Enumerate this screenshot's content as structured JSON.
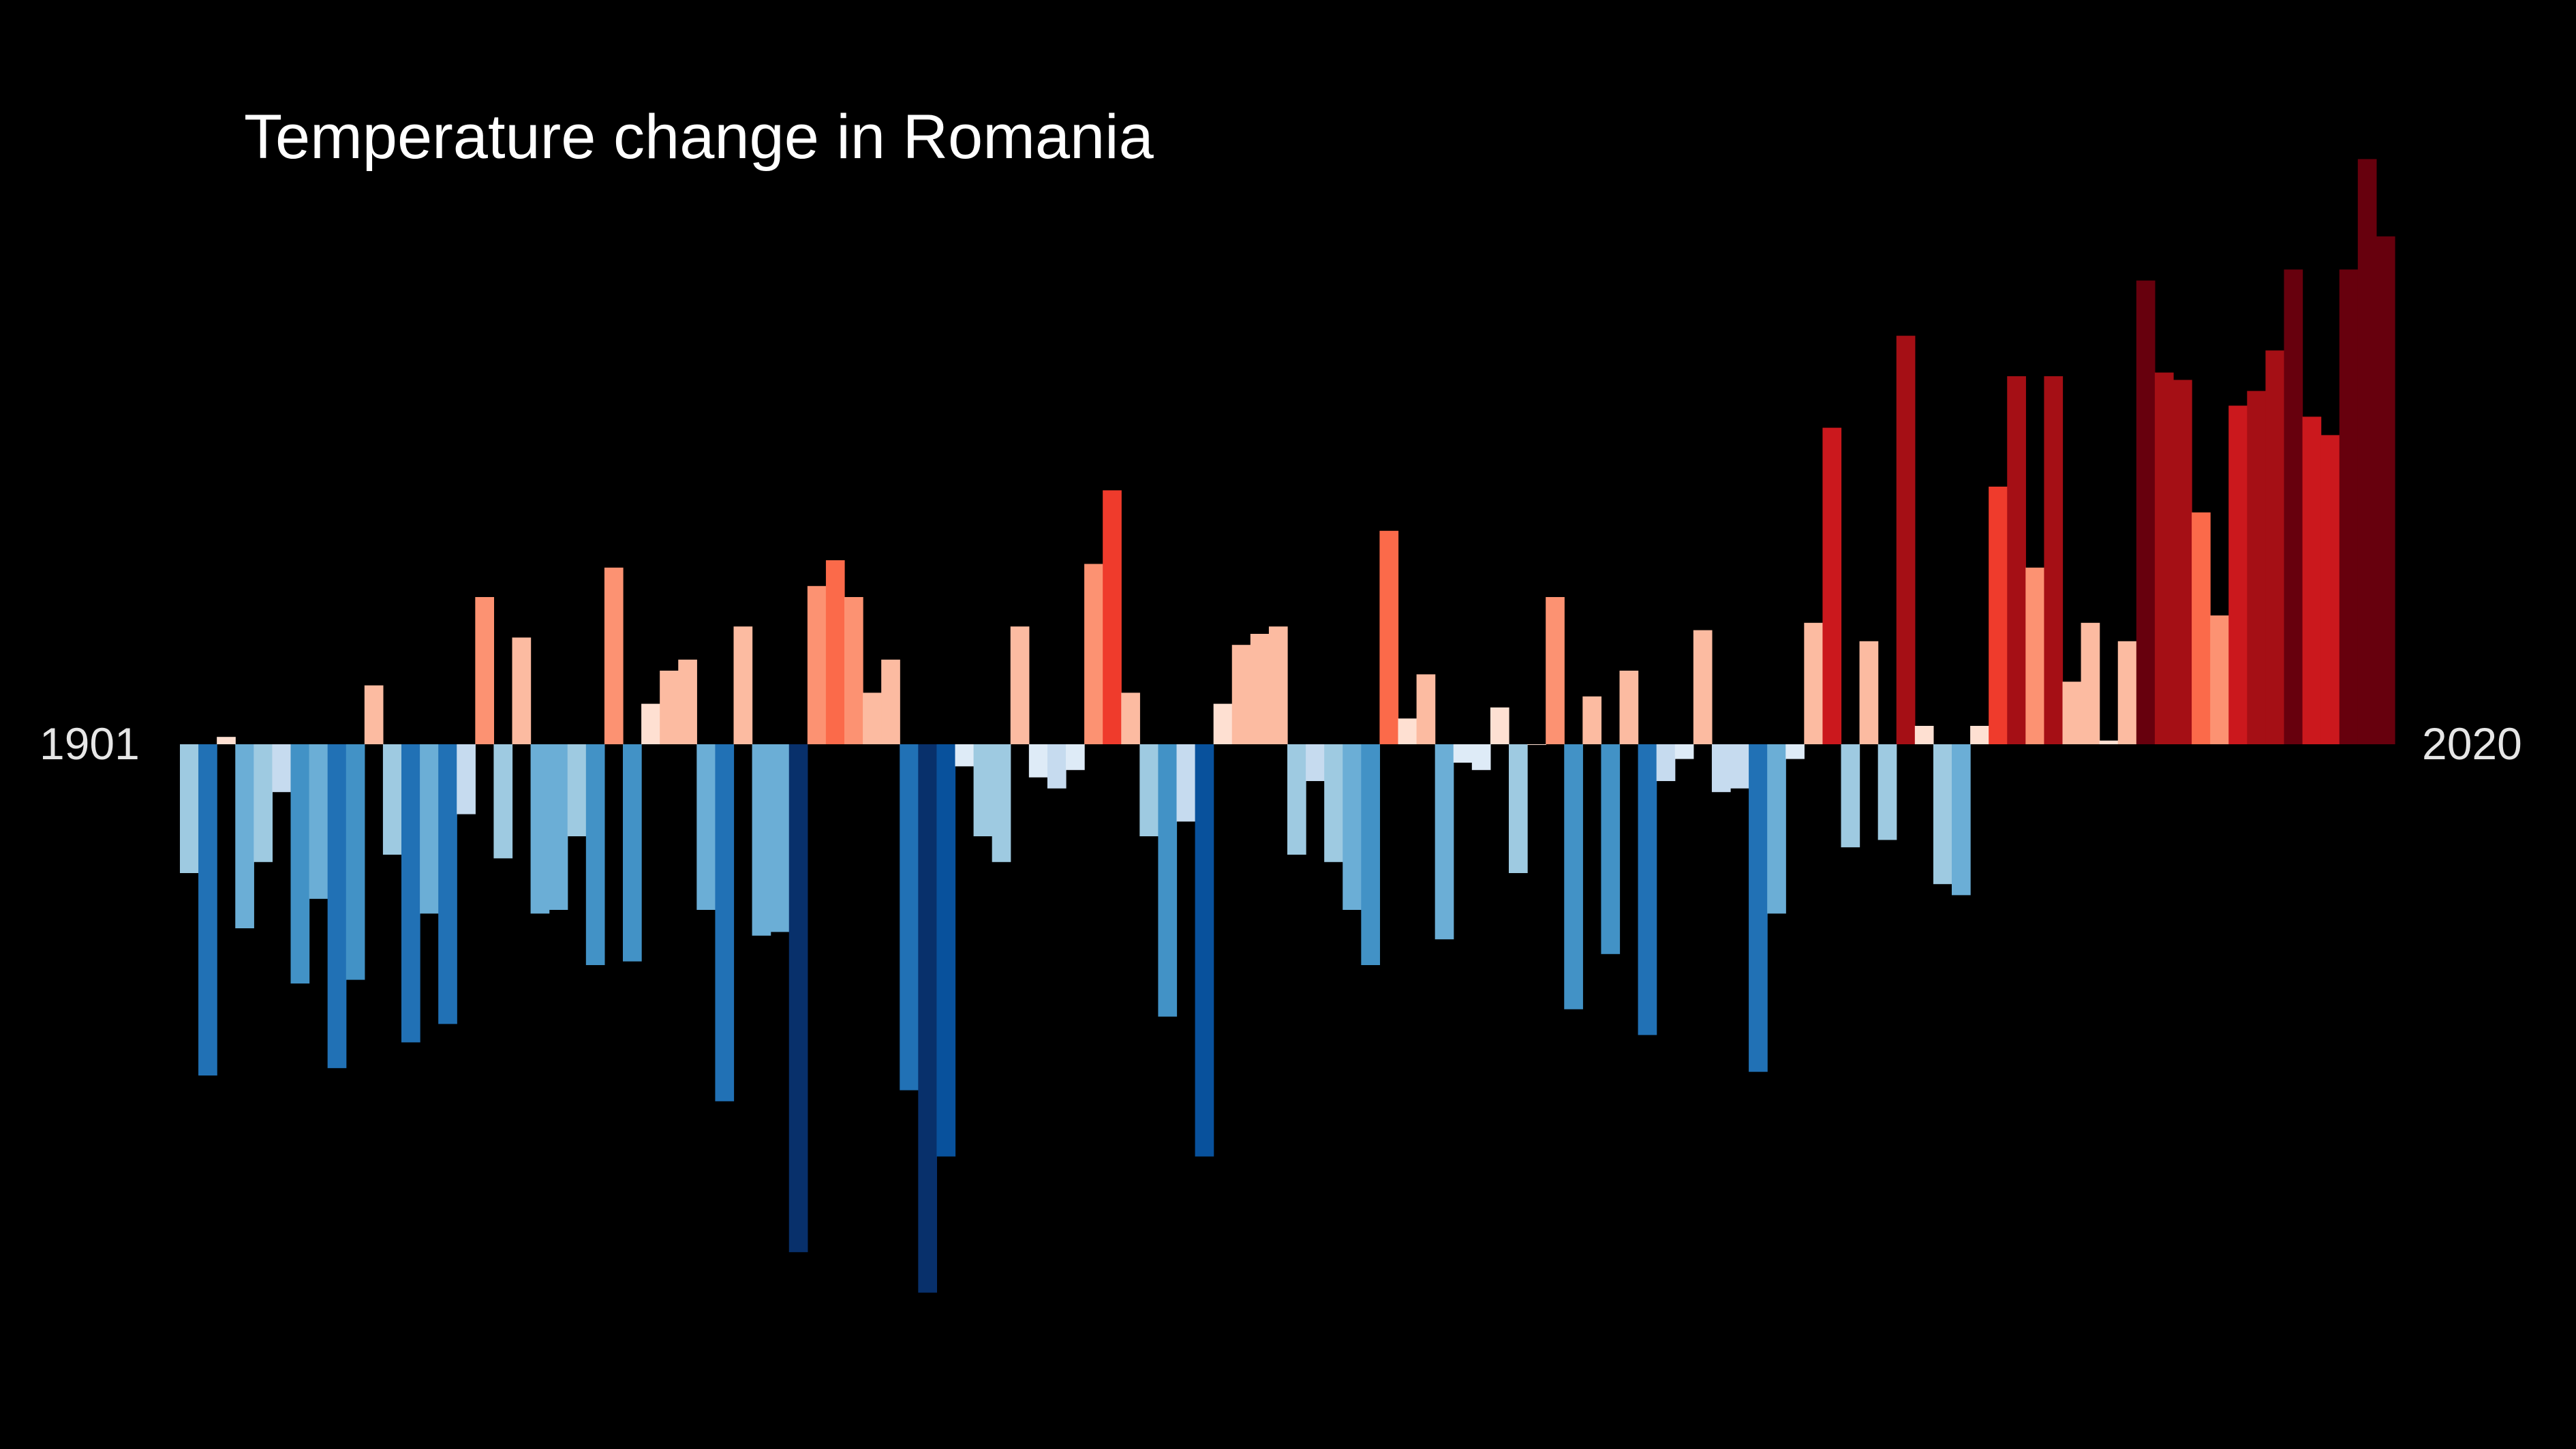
{
  "chart_data": {
    "type": "bar",
    "title": "Temperature change in Romania",
    "xlabel": "",
    "ylabel": "",
    "start_label": "1901",
    "end_label": "2020",
    "x_start": 1901,
    "x_end": 2020,
    "ylim": [
      -1.5,
      1.6
    ],
    "grid": false,
    "legend": "none",
    "background": "#000000",
    "values": [
      -0.35,
      -0.9,
      0.02,
      -0.5,
      -0.32,
      -0.13,
      -0.65,
      -0.42,
      -0.88,
      -0.64,
      0.16,
      -0.3,
      -0.81,
      -0.46,
      -0.76,
      -0.19,
      0.4,
      -0.31,
      0.29,
      -0.46,
      -0.45,
      -0.25,
      -0.6,
      0.48,
      -0.59,
      0.11,
      0.2,
      0.23,
      -0.45,
      -0.97,
      0.32,
      -0.52,
      -0.51,
      -1.38,
      0.43,
      0.5,
      0.4,
      0.14,
      0.23,
      -0.94,
      -1.49,
      -1.12,
      -0.06,
      -0.25,
      -0.32,
      0.32,
      -0.09,
      -0.12,
      -0.07,
      0.49,
      0.69,
      0.14,
      -0.25,
      -0.74,
      -0.21,
      -1.12,
      0.11,
      0.27,
      0.3,
      0.32,
      -0.3,
      -0.1,
      -0.32,
      -0.45,
      -0.6,
      0.58,
      0.07,
      0.19,
      -0.53,
      -0.05,
      -0.07,
      0.1,
      -0.35,
      0.0,
      0.4,
      -0.72,
      0.13,
      -0.57,
      0.2,
      -0.79,
      -0.1,
      -0.04,
      0.31,
      -0.13,
      -0.12,
      -0.89,
      -0.46,
      -0.04,
      0.33,
      0.86,
      -0.28,
      0.28,
      -0.26,
      1.11,
      0.05,
      -0.38,
      -0.41,
      0.05,
      0.7,
      1.0,
      0.48,
      1.0,
      0.17,
      0.33,
      0.01,
      0.28,
      1.26,
      1.01,
      0.99,
      0.63,
      0.35,
      0.92,
      0.96,
      1.07,
      1.29,
      0.89,
      0.84,
      1.29,
      1.59,
      1.38
    ],
    "colors": {
      "cold_extreme": "#08306b",
      "cold_strong": "#08519c",
      "cold_mid": "#2171b5",
      "cold_light": "#4292c6",
      "cold_pale": "#6baed6",
      "cold_faint": "#9ecae1",
      "cold_trace": "#c6dbef",
      "neutral_cold": "#deebf7",
      "neutral_warm": "#fee0d2",
      "warm_trace": "#fcbba1",
      "warm_faint": "#fc9272",
      "warm_light": "#fb6a4a",
      "warm_mid": "#ef3b2c",
      "warm_strong": "#cb181d",
      "warm_deep": "#a50f15",
      "warm_extreme": "#67000d"
    }
  }
}
